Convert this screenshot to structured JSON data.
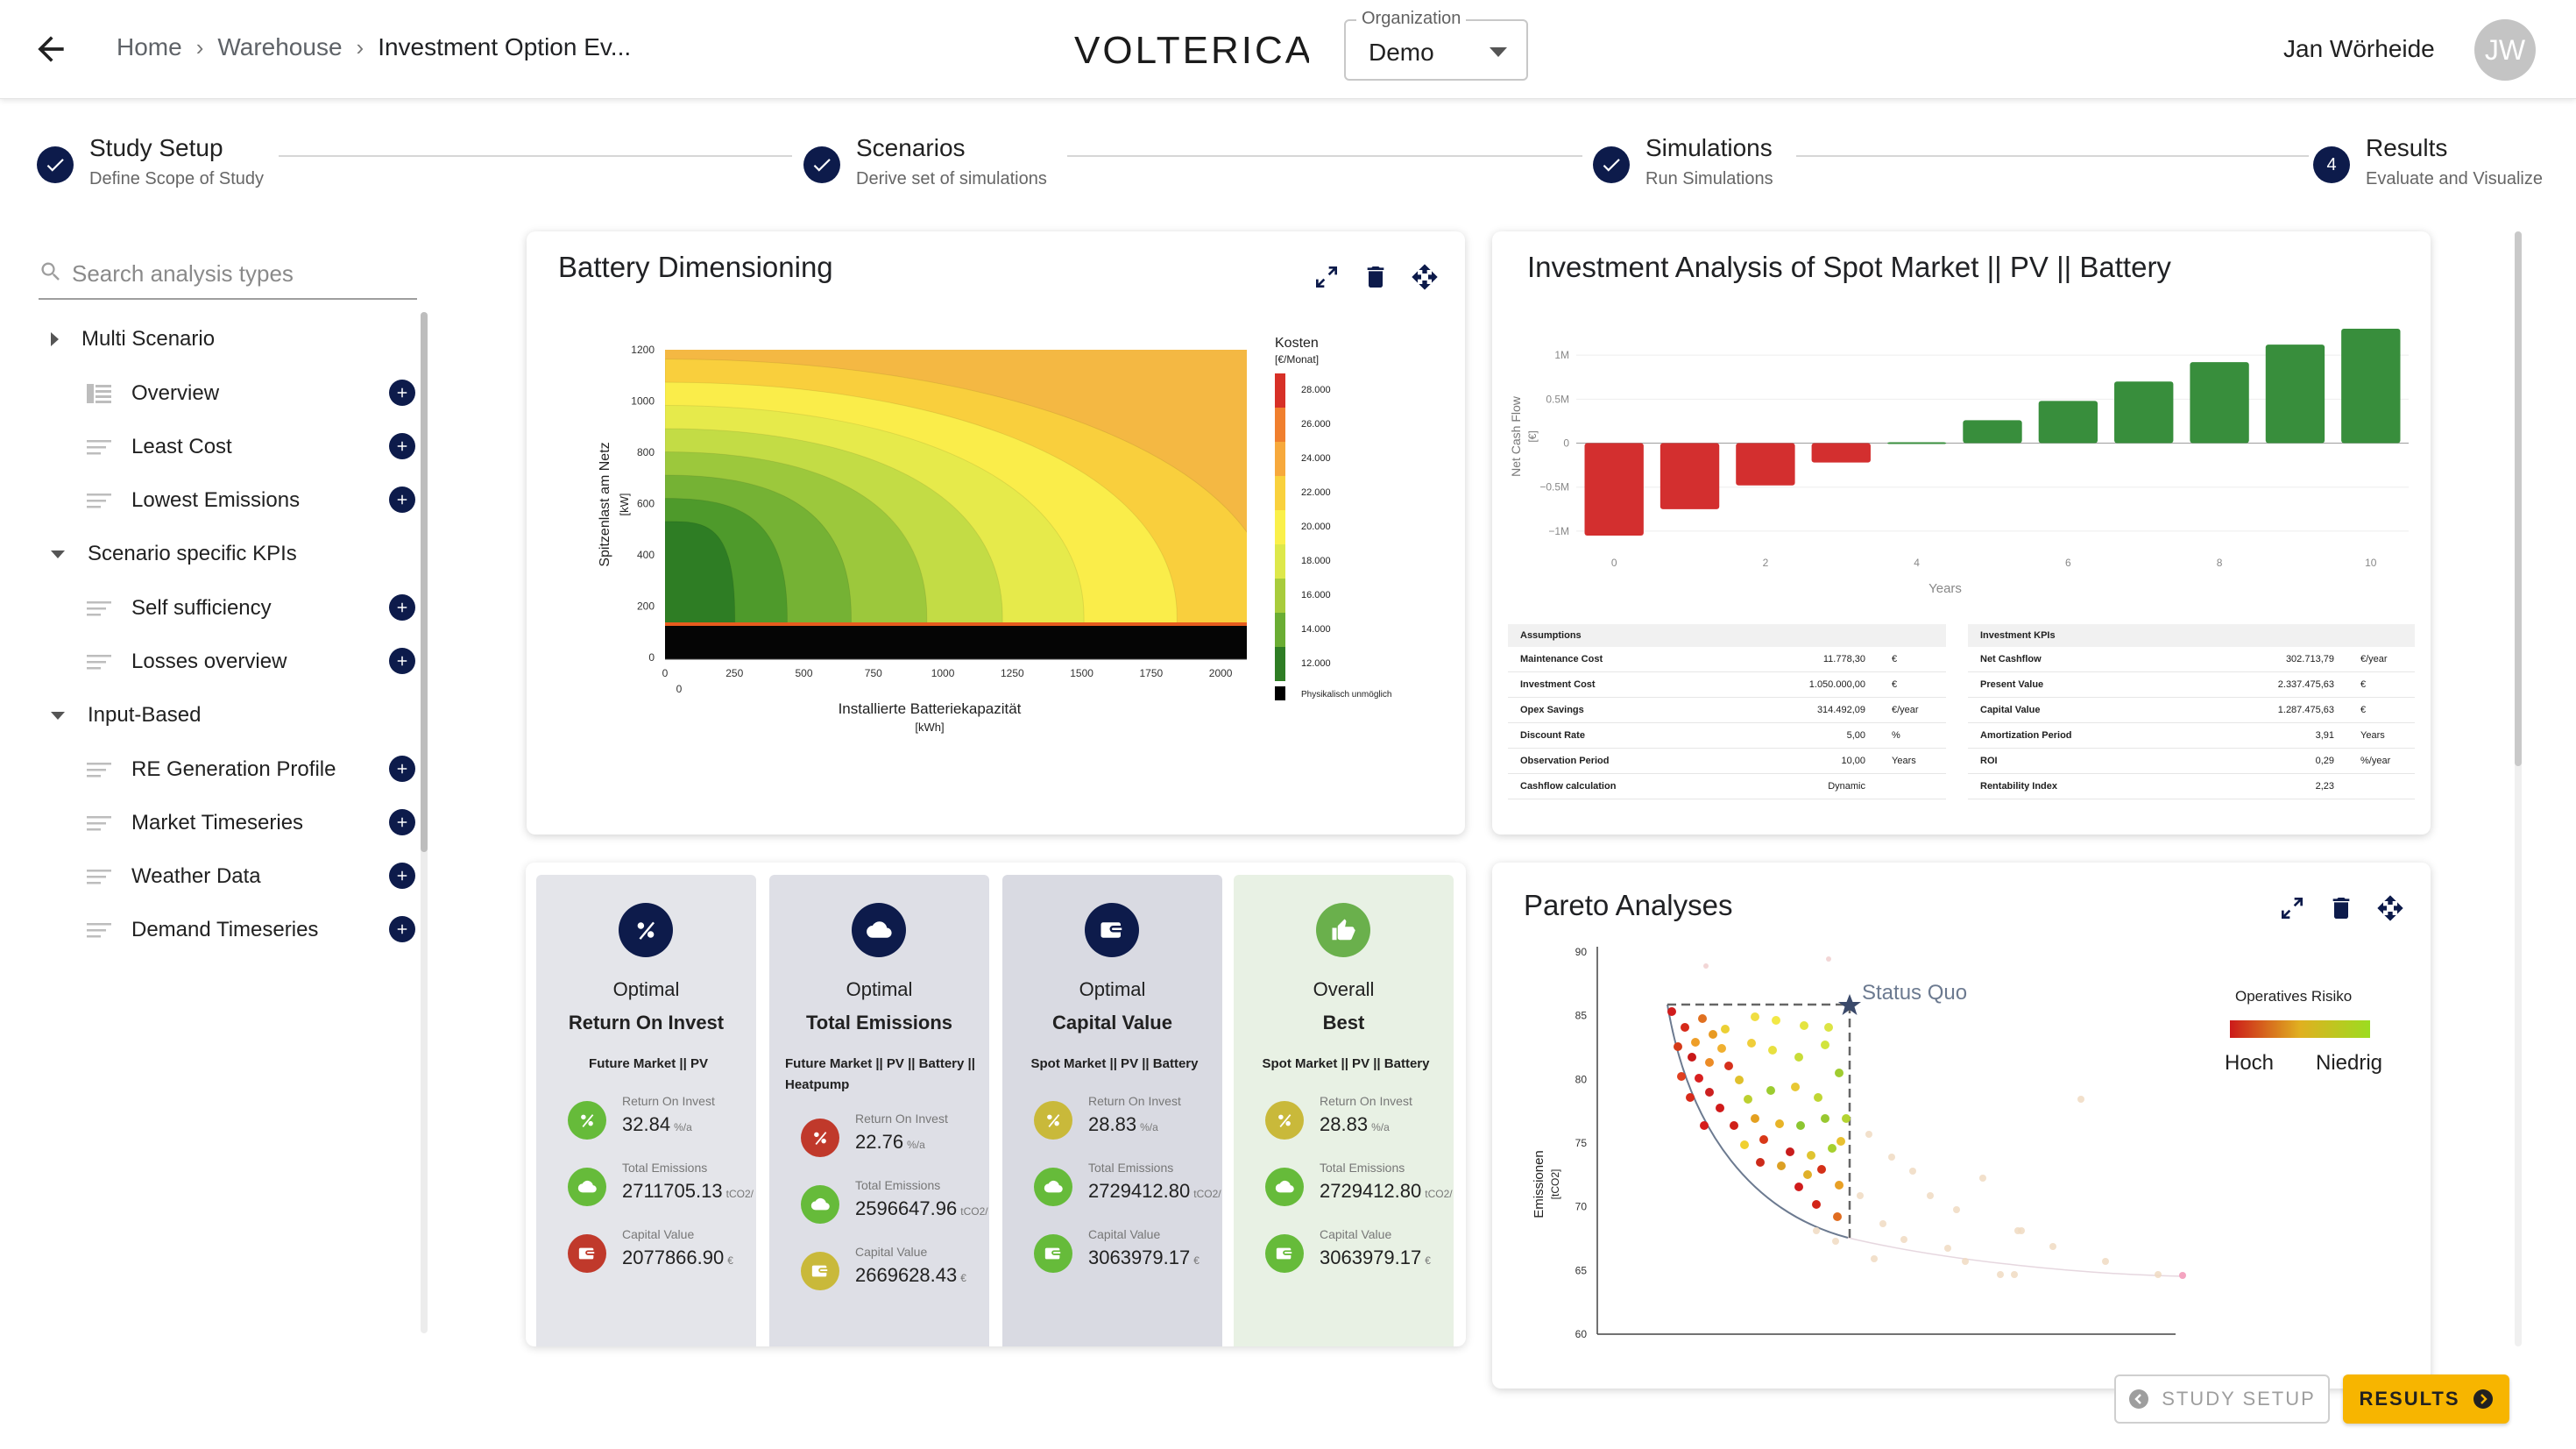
{
  "header": {
    "breadcrumb": [
      "Home",
      "Warehouse",
      "Investment Option Ev..."
    ],
    "logo": "VOLTERICA",
    "org_label": "Organization",
    "org_value": "Demo",
    "user_name": "Jan Wörheide",
    "user_initials": "JW"
  },
  "stepper": [
    {
      "title": "Study Setup",
      "subtitle": "Define Scope of Study",
      "state": "done"
    },
    {
      "title": "Scenarios",
      "subtitle": "Derive set of simulations",
      "state": "done"
    },
    {
      "title": "Simulations",
      "subtitle": "Run Simulations",
      "state": "done"
    },
    {
      "title": "Results",
      "subtitle": "Evaluate and Visualize",
      "state": "active",
      "number": "4"
    }
  ],
  "sidebar": {
    "search_placeholder": "Search analysis types",
    "groups": [
      {
        "label": "Multi Scenario",
        "expanded": false,
        "items": [
          "Overview",
          "Least Cost",
          "Lowest Emissions"
        ]
      },
      {
        "label": "Scenario specific KPIs",
        "expanded": true,
        "items": [
          "Self sufficiency",
          "Losses overview"
        ]
      },
      {
        "label": "Input-Based",
        "expanded": true,
        "items": [
          "RE Generation Profile",
          "Market Timeseries",
          "Weather Data",
          "Demand Timeseries"
        ]
      }
    ]
  },
  "battery_card": {
    "title": "Battery Dimensioning",
    "ylabel": "Spitzenlast am Netz",
    "ylabel_unit": "[kW]",
    "xlabel": "Installierte Batteriekapazität",
    "xlabel_unit": "[kWh]",
    "x_ticks": [
      "0",
      "250",
      "500",
      "750",
      "1000",
      "1250",
      "1500",
      "1750",
      "2000"
    ],
    "x_tick_extra": "0",
    "y_ticks": [
      "1200",
      "1000",
      "800",
      "600",
      "400",
      "200",
      "0"
    ],
    "legend_title": "Kosten",
    "legend_unit": "[€/Monat]",
    "legend_values": [
      "28.000",
      "26.000",
      "24.000",
      "22.000",
      "20.000",
      "18.000",
      "16.000",
      "14.000",
      "12.000"
    ],
    "legend_colors": [
      "#d73027",
      "#f07f2e",
      "#f7a93c",
      "#f9d13d",
      "#faf04a",
      "#dde84a",
      "#a8cc3c",
      "#6aad33",
      "#2e7d24"
    ],
    "legend_black": "Physikalisch unmöglich"
  },
  "investment_card": {
    "title": "Investment Analysis of Spot Market || PV || Battery",
    "chart_data": {
      "type": "bar",
      "x": [
        0,
        1,
        2,
        3,
        4,
        5,
        6,
        7,
        8,
        9,
        10
      ],
      "values": [
        -1.05,
        -0.75,
        -0.48,
        -0.22,
        0.01,
        0.26,
        0.48,
        0.7,
        0.92,
        1.12,
        1.3
      ],
      "ylabel": "Net Cash Flow",
      "ylabel_unit": "[€]",
      "xlabel": "Years",
      "y_ticks": [
        "1M",
        "0.5M",
        "0",
        "−0.5M",
        "−1M"
      ],
      "x_ticks": [
        "0",
        "2",
        "4",
        "6",
        "8",
        "10"
      ],
      "negative_color": "#d32f2f",
      "positive_color": "#388e3c"
    },
    "assumptions": {
      "header": "Assumptions",
      "rows": [
        {
          "label": "Maintenance Cost",
          "value": "11.778,30",
          "unit": "€"
        },
        {
          "label": "Investment Cost",
          "value": "1.050.000,00",
          "unit": "€"
        },
        {
          "label": "Opex Savings",
          "value": "314.492,09",
          "unit": "€/year"
        },
        {
          "label": "Discount Rate",
          "value": "5,00",
          "unit": "%"
        },
        {
          "label": "Observation Period",
          "value": "10,00",
          "unit": "Years"
        },
        {
          "label": "Cashflow calculation",
          "value": "Dynamic",
          "unit": ""
        }
      ]
    },
    "kpis": {
      "header": "Investment KPIs",
      "rows": [
        {
          "label": "Net Cashflow",
          "value": "302.713,79",
          "unit": "€/year"
        },
        {
          "label": "Present Value",
          "value": "2.337.475,63",
          "unit": "€"
        },
        {
          "label": "Capital Value",
          "value": "1.287.475,63",
          "unit": "€"
        },
        {
          "label": "Amortization Period",
          "value": "3,91",
          "unit": "Years"
        },
        {
          "label": "ROI",
          "value": "0,29",
          "unit": "%/year"
        },
        {
          "label": "Rentability Index",
          "value": "2,23",
          "unit": ""
        }
      ]
    }
  },
  "kpi_tiles": [
    {
      "line1": "Optimal",
      "line2": "Return On Invest",
      "scenario": "Future Market || PV",
      "icon": "percent-icon",
      "badge_color": "#0d1b4b",
      "bg": "#e4e5ea",
      "metrics": [
        {
          "label": "Return On Invest",
          "value": "32.84",
          "unit": "%/a",
          "color": "#66bb3a",
          "icon": "percent-icon"
        },
        {
          "label": "Total Emissions",
          "value": "2711705.13",
          "unit": "tCO2/",
          "color": "#66bb3a",
          "icon": "cloud-icon"
        },
        {
          "label": "Capital Value",
          "value": "2077866.90",
          "unit": "€",
          "color": "#c0392b",
          "icon": "wallet-icon"
        }
      ]
    },
    {
      "line1": "Optimal",
      "line2": "Total Emissions",
      "scenario": "Future Market || PV || Battery || Heatpump",
      "icon": "cloud-icon",
      "badge_color": "#0d1b4b",
      "bg": "#dedfe6",
      "metrics": [
        {
          "label": "Return On Invest",
          "value": "22.76",
          "unit": "%/a",
          "color": "#c0392b",
          "icon": "percent-icon"
        },
        {
          "label": "Total Emissions",
          "value": "2596647.96",
          "unit": "tCO2/",
          "color": "#66bb3a",
          "icon": "cloud-icon"
        },
        {
          "label": "Capital Value",
          "value": "2669628.43",
          "unit": "€",
          "color": "#c9b93a",
          "icon": "wallet-icon"
        }
      ]
    },
    {
      "line1": "Optimal",
      "line2": "Capital Value",
      "scenario": "Spot Market || PV || Battery",
      "icon": "wallet-icon",
      "badge_color": "#0d1b4b",
      "bg": "#d9dae2",
      "metrics": [
        {
          "label": "Return On Invest",
          "value": "28.83",
          "unit": "%/a",
          "color": "#c9b93a",
          "icon": "percent-icon"
        },
        {
          "label": "Total Emissions",
          "value": "2729412.80",
          "unit": "tCO2/",
          "color": "#66bb3a",
          "icon": "cloud-icon"
        },
        {
          "label": "Capital Value",
          "value": "3063979.17",
          "unit": "€",
          "color": "#66bb3a",
          "icon": "wallet-icon"
        }
      ]
    },
    {
      "line1": "Overall",
      "line2": "Best",
      "scenario": "Spot Market || PV || Battery",
      "icon": "thumbs-up-icon",
      "badge_color": "#6ab04c",
      "bg": "#e8f1e4",
      "metrics": [
        {
          "label": "Return On Invest",
          "value": "28.83",
          "unit": "%/a",
          "color": "#c9b93a",
          "icon": "percent-icon"
        },
        {
          "label": "Total Emissions",
          "value": "2729412.80",
          "unit": "tCO2/",
          "color": "#66bb3a",
          "icon": "cloud-icon"
        },
        {
          "label": "Capital Value",
          "value": "3063979.17",
          "unit": "€",
          "color": "#66bb3a",
          "icon": "wallet-icon"
        }
      ]
    }
  ],
  "pareto_card": {
    "title": "Pareto Analyses",
    "ylabel": "Emissionen",
    "ylabel_unit": "[tCO2]",
    "y_ticks": [
      "90",
      "85",
      "80",
      "75",
      "70",
      "65",
      "60"
    ],
    "status_quo": "Status Quo",
    "legend_title": "Operatives Risiko",
    "legend_low": "Hoch",
    "legend_high": "Niedrig"
  },
  "footer": {
    "setup_label": "STUDY SETUP",
    "results_label": "RESULTS"
  }
}
